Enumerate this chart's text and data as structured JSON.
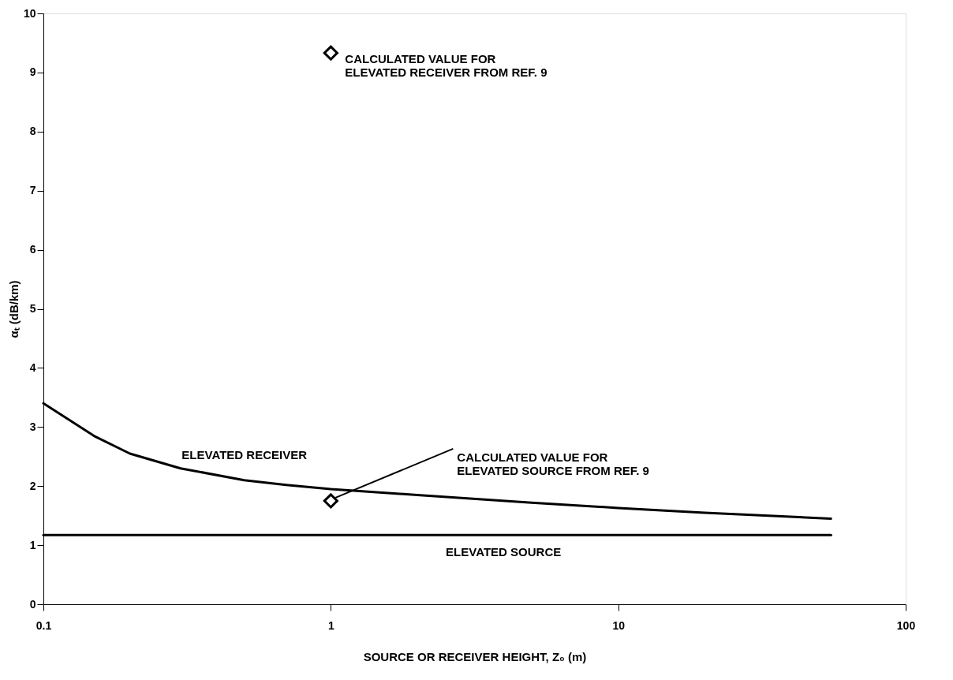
{
  "chart_data": {
    "type": "line",
    "xlabel": "SOURCE OR RECEIVER HEIGHT, Z₀ (m)",
    "ylabel": "αₜ (dB/km)",
    "log": "x",
    "xlim": [
      0.1,
      100
    ],
    "xticks": [
      0.1,
      1,
      10,
      100
    ],
    "ylim": [
      0,
      10
    ],
    "yticks": [
      0,
      1,
      2,
      3,
      4,
      5,
      6,
      7,
      8,
      9,
      10
    ],
    "grid": false,
    "legend": false,
    "line_style": "solid",
    "series": [
      {
        "name": "ELEVATED RECEIVER",
        "color": "#000000",
        "x": [
          0.1,
          0.15,
          0.2,
          0.3,
          0.5,
          0.7,
          1,
          2,
          5,
          10,
          20,
          55
        ],
        "values": [
          3.4,
          2.85,
          2.55,
          2.3,
          2.1,
          2.02,
          1.95,
          1.85,
          1.72,
          1.63,
          1.55,
          1.45
        ]
      },
      {
        "name": "ELEVATED SOURCE",
        "color": "#000000",
        "x": [
          0.1,
          55
        ],
        "values": [
          1.17,
          1.17
        ]
      },
      {
        "name": "CALCULATED VALUE FOR\nELEVATED RECEIVER FROM REF. 9",
        "type": "scatter",
        "marker": "diamond",
        "color": "#000000",
        "x": [
          1
        ],
        "values": [
          9.33
        ]
      },
      {
        "name": "CALCULATED VALUE FOR\nELEVATED SOURCE FROM REF. 9",
        "type": "scatter",
        "marker": "diamond",
        "color": "#000000",
        "x": [
          1
        ],
        "values": [
          1.75
        ]
      }
    ]
  }
}
